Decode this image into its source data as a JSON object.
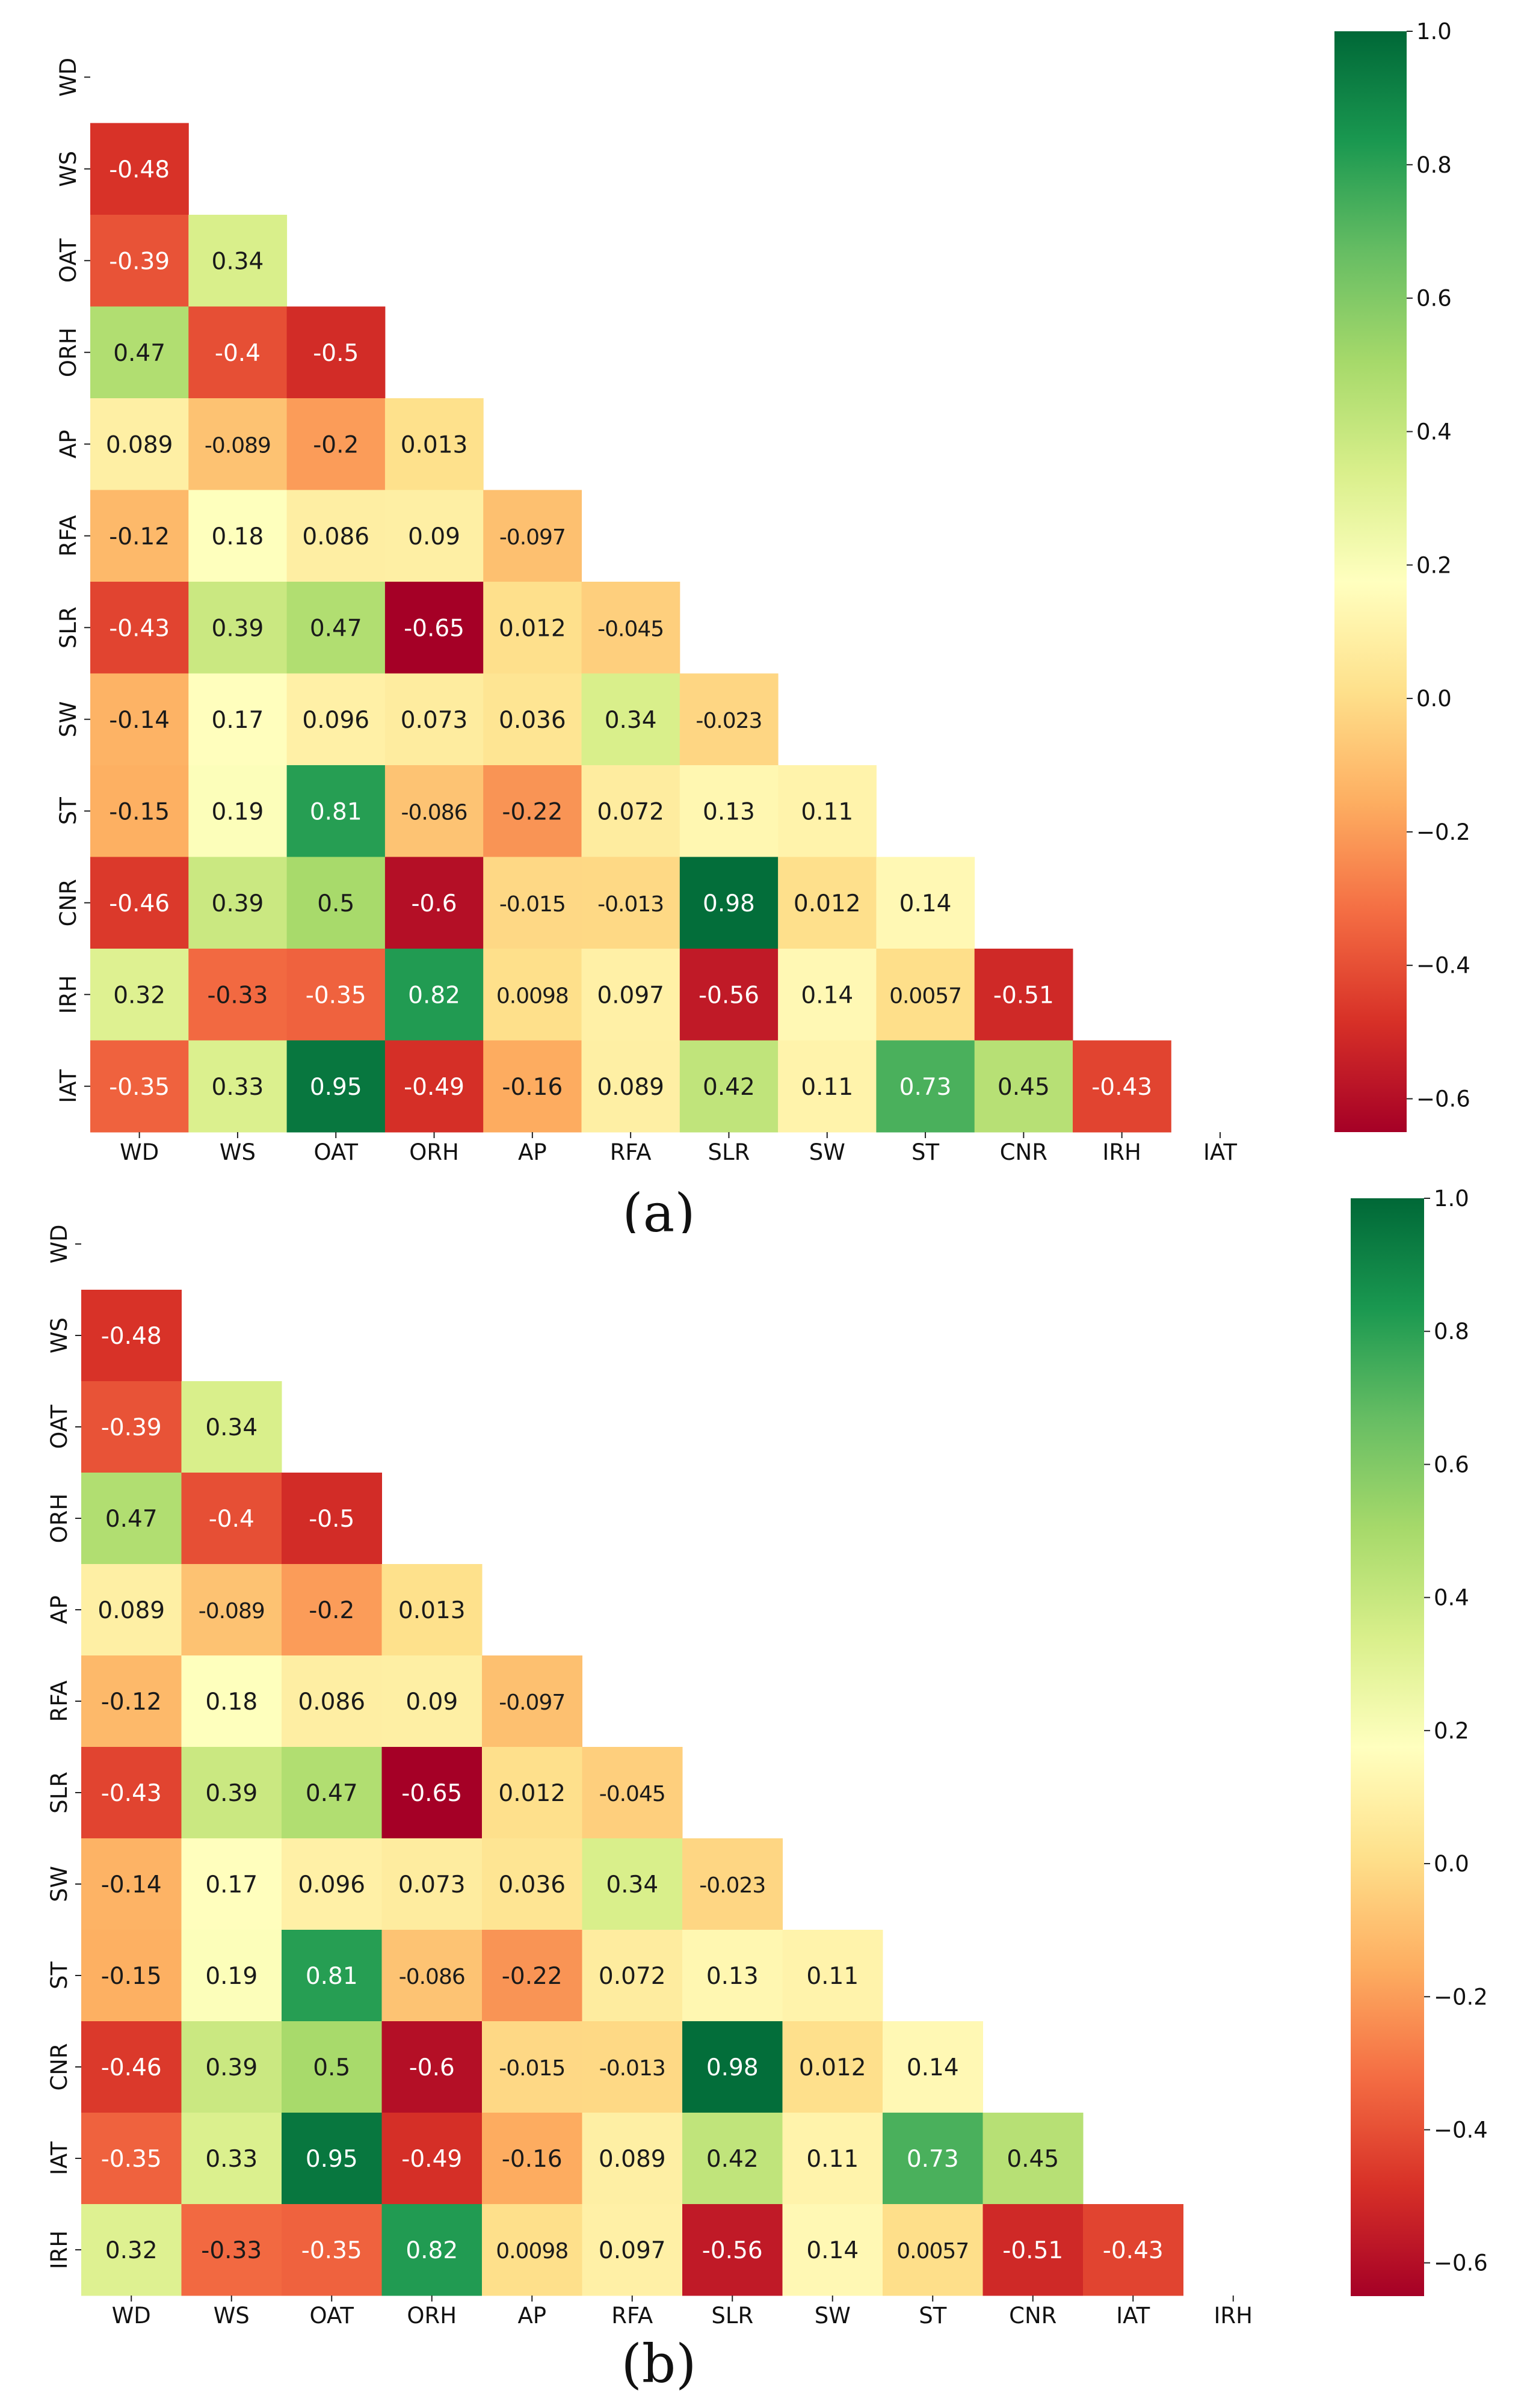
{
  "chart_data": [
    {
      "type": "heatmap",
      "caption": "(a)",
      "variables": [
        "WD",
        "WS",
        "OAT",
        "ORH",
        "AP",
        "RFA",
        "SLR",
        "SW",
        "ST",
        "CNR",
        "IRH",
        "IAT"
      ],
      "lower_triangle": [
        [],
        [
          "-0.48"
        ],
        [
          "-0.39",
          "0.34"
        ],
        [
          "0.47",
          "-0.4",
          "-0.5"
        ],
        [
          "0.089",
          "-0.089",
          "-0.2",
          "0.013"
        ],
        [
          "-0.12",
          "0.18",
          "0.086",
          "0.09",
          "-0.097"
        ],
        [
          "-0.43",
          "0.39",
          "0.47",
          "-0.65",
          "0.012",
          "-0.045"
        ],
        [
          "-0.14",
          "0.17",
          "0.096",
          "0.073",
          "0.036",
          "0.34",
          "-0.023"
        ],
        [
          "-0.15",
          "0.19",
          "0.81",
          "-0.086",
          "-0.22",
          "0.072",
          "0.13",
          "0.11"
        ],
        [
          "-0.46",
          "0.39",
          "0.5",
          "-0.6",
          "-0.015",
          "-0.013",
          "0.98",
          "0.012",
          "0.14"
        ],
        [
          "0.32",
          "-0.33",
          "-0.35",
          "0.82",
          "0.0098",
          "0.097",
          "-0.56",
          "0.14",
          "0.0057",
          "-0.51"
        ],
        [
          "-0.35",
          "0.33",
          "0.95",
          "-0.49",
          "-0.16",
          "0.089",
          "0.42",
          "0.11",
          "0.73",
          "0.45",
          "-0.43"
        ]
      ],
      "colorbar": {
        "range": [
          -0.65,
          1.0
        ],
        "ticks": [
          "1.0",
          "0.8",
          "0.6",
          "0.4",
          "0.2",
          "0.0",
          "−0.2",
          "−0.4",
          "−0.6"
        ],
        "colormap": "RdYlGn"
      }
    },
    {
      "type": "heatmap",
      "caption": "(b)",
      "variables": [
        "WD",
        "WS",
        "OAT",
        "ORH",
        "AP",
        "RFA",
        "SLR",
        "SW",
        "ST",
        "CNR",
        "IAT",
        "IRH"
      ],
      "lower_triangle": [
        [],
        [
          "-0.48"
        ],
        [
          "-0.39",
          "0.34"
        ],
        [
          "0.47",
          "-0.4",
          "-0.5"
        ],
        [
          "0.089",
          "-0.089",
          "-0.2",
          "0.013"
        ],
        [
          "-0.12",
          "0.18",
          "0.086",
          "0.09",
          "-0.097"
        ],
        [
          "-0.43",
          "0.39",
          "0.47",
          "-0.65",
          "0.012",
          "-0.045"
        ],
        [
          "-0.14",
          "0.17",
          "0.096",
          "0.073",
          "0.036",
          "0.34",
          "-0.023"
        ],
        [
          "-0.15",
          "0.19",
          "0.81",
          "-0.086",
          "-0.22",
          "0.072",
          "0.13",
          "0.11"
        ],
        [
          "-0.46",
          "0.39",
          "0.5",
          "-0.6",
          "-0.015",
          "-0.013",
          "0.98",
          "0.012",
          "0.14"
        ],
        [
          "-0.35",
          "0.33",
          "0.95",
          "-0.49",
          "-0.16",
          "0.089",
          "0.42",
          "0.11",
          "0.73",
          "0.45"
        ],
        [
          "0.32",
          "-0.33",
          "-0.35",
          "0.82",
          "0.0098",
          "0.097",
          "-0.56",
          "0.14",
          "0.0057",
          "-0.51",
          "-0.43"
        ]
      ],
      "colorbar": {
        "range": [
          -0.65,
          1.0
        ],
        "ticks": [
          "1.0",
          "0.8",
          "0.6",
          "0.4",
          "0.2",
          "0.0",
          "−0.2",
          "−0.4",
          "−0.6"
        ],
        "colormap": "RdYlGn"
      }
    }
  ]
}
